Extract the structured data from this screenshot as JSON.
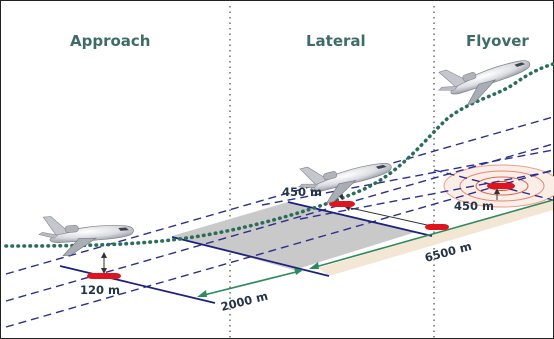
{
  "headers": {
    "approach": "Approach",
    "lateral": "Lateral",
    "flyover": "Flyover"
  },
  "labels": {
    "approach_distance": "120 m",
    "runway_distance": "2000 m",
    "lateral_height": "450 m",
    "flyover_height": "450 m",
    "takeoff_distance": "6500 m"
  },
  "colors": {
    "header_text": "#3f6b68",
    "flight_path": "#2a6e5a",
    "dashed_lines": "#2c2f8e",
    "marker": "#e0141e",
    "runway": "#c9c9c9",
    "runway_extension": "#f4e6d4",
    "measure_arrow": "#2e8a5c"
  },
  "icons": [
    "aircraft-icon",
    "measurement-point-icon",
    "noise-contour-icon"
  ]
}
